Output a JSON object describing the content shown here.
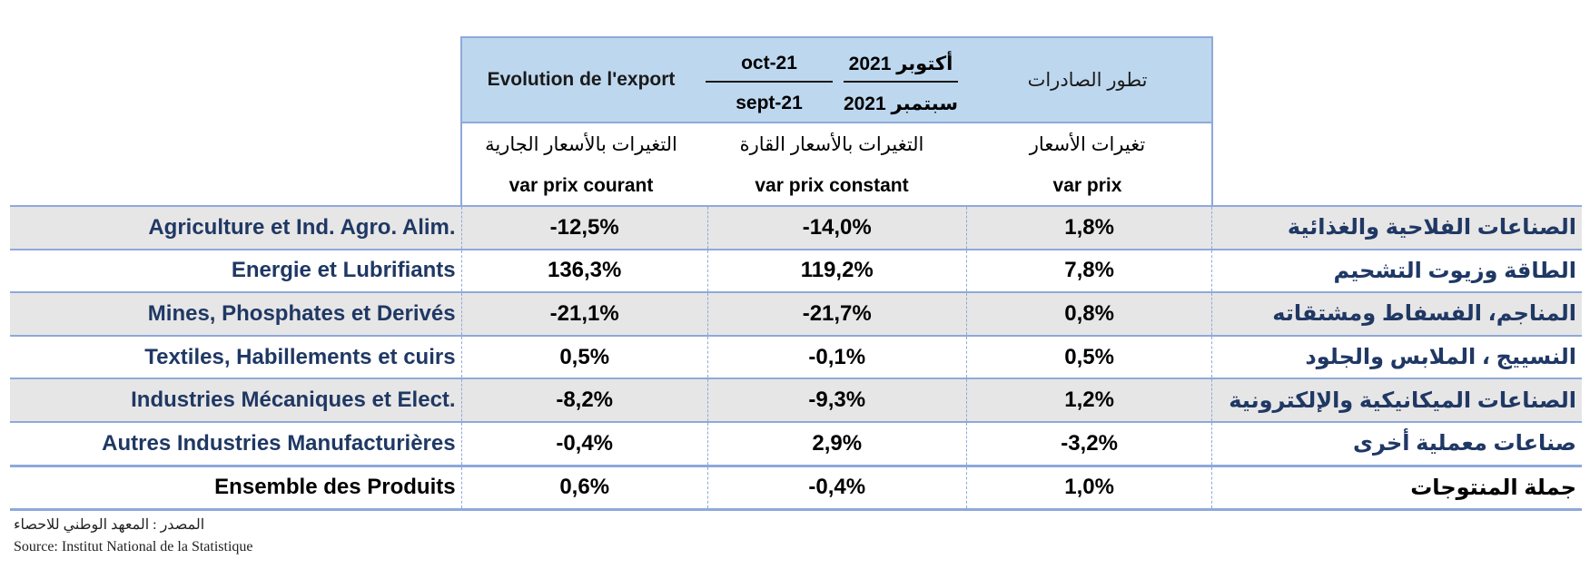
{
  "header": {
    "french_title": "Evolution de l'export",
    "arabic_title": "تطور الصادرات",
    "numerator_fr": "oct-21",
    "denominator_fr": "sept-21",
    "numerator_ar": "أكتوبر 2021",
    "denominator_ar": "سبتمبر 2021",
    "col_ar": {
      "current": "التغيرات بالأسعار الجارية",
      "constant": "التغيرات بالأسعار القارة",
      "price": "تغيرات الأسعار"
    },
    "col_fr": {
      "current": "var prix courant",
      "constant": "var prix constant",
      "price": "var prix"
    }
  },
  "rows": [
    {
      "fr": "Agriculture et Ind. Agro. Alim.",
      "current": "-12,5%",
      "constant": "-14,0%",
      "price": "1,8%",
      "ar": "الصناعات الفلاحية والغذائية"
    },
    {
      "fr": "Energie et Lubrifiants",
      "current": "136,3%",
      "constant": "119,2%",
      "price": "7,8%",
      "ar": "الطاقة وزيوت التشحيم"
    },
    {
      "fr": "Mines, Phosphates et Derivés",
      "current": "-21,1%",
      "constant": "-21,7%",
      "price": "0,8%",
      "ar": "المناجم، الفسفاط ومشتقاته"
    },
    {
      "fr": "Textiles, Habillements et cuirs",
      "current": "0,5%",
      "constant": "-0,1%",
      "price": "0,5%",
      "ar": "النسييج ، الملابس والجلود"
    },
    {
      "fr": "Industries Mécaniques et Elect.",
      "current": "-8,2%",
      "constant": "-9,3%",
      "price": "1,2%",
      "ar": "الصناعات الميكانيكية والإلكترونية"
    },
    {
      "fr": "Autres Industries Manufacturières",
      "current": "-0,4%",
      "constant": "2,9%",
      "price": "-3,2%",
      "ar": "صناعات معملية أخرى"
    }
  ],
  "total": {
    "fr": "Ensemble des Produits",
    "current": "0,6%",
    "constant": "-0,4%",
    "price": "1,0%",
    "ar": "جملة المنتوجات"
  },
  "source": {
    "ar": "المصدر : المعهد الوطني للاحصاء",
    "fr": "Source: Institut National de la Statistique"
  }
}
